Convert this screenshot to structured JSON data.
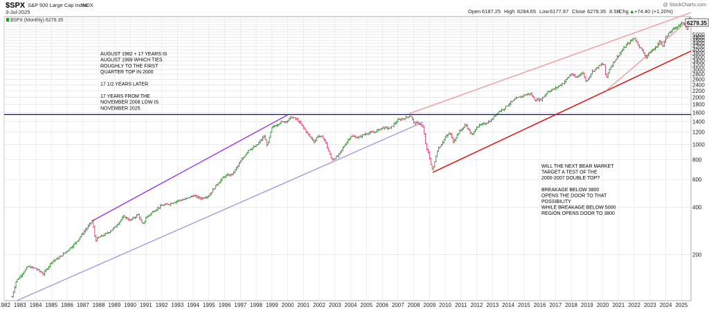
{
  "header": {
    "symbol": "$SPX",
    "name": "S&P 500 Large Cap Index",
    "exchange": "INDX",
    "date": "3-Jul-2025",
    "watermark": "@ StockCharts.com",
    "ohlc": {
      "open_label": "Open",
      "open": "6187.25",
      "high_label": "High",
      "high": "6284.65",
      "low_label": "Low",
      "low": "6177.97",
      "close_label": "Close",
      "close": "6279.35",
      "volume": "8.5B",
      "chg_label": "Chg",
      "chg": "+74.40 (+1.20%)",
      "chg_arrow": "▲"
    },
    "legend": "$SPX (Monthly) 6279.35",
    "last_tag": "6279.35"
  },
  "annotations": {
    "left": [
      "AUGUST 1982 + 17  YEARS IS",
      "AUGUST 1999 WHICH TIES",
      "ROUGHLY TO THE FIRST",
      "QUARTER TOP IN 2000",
      "",
      "17 1/2 YEARS LATER",
      "",
      "17 YEARS FROM THE",
      "NOVEMBER 2008 LOW IS",
      "NOVEMBER 2025"
    ],
    "right": [
      "WILL THE NEXT BEAR MARKET",
      "TARGET A TEST OF THE",
      "2000-2007 DOUBLE TOP?",
      "",
      "BREAKAGE BELOW 3800",
      "OPENS THE DOOR TO THAT",
      "POSSIBILITY",
      "WHILE BREAKAGE BELOW 5000",
      "REGION OPENS DOOR TO 3800"
    ]
  },
  "chart_data": {
    "type": "line",
    "frequency": "monthly",
    "y_scale": "log",
    "ylim": [
      102,
      6500
    ],
    "xlim": [
      1982.0,
      2025.6
    ],
    "x_ticks": [
      "1982",
      "1983",
      "1984",
      "1985",
      "1986",
      "1987",
      "1988",
      "1989",
      "1990",
      "1991",
      "1992",
      "1993",
      "1994",
      "1995",
      "1996",
      "1997",
      "1998",
      "1999",
      "2000",
      "2001",
      "2002",
      "2003",
      "2004",
      "2005",
      "2006",
      "2007",
      "2008",
      "2009",
      "2010",
      "2011",
      "2012",
      "2013",
      "2014",
      "2015",
      "2016",
      "2017",
      "2018",
      "2019",
      "2020",
      "2021",
      "2022",
      "2023",
      "2024",
      "2025"
    ],
    "y_ticks": [
      "200",
      "400",
      "600",
      "800",
      "1000",
      "1200",
      "1400",
      "1600",
      "1800",
      "2000",
      "2200",
      "2400",
      "2600",
      "2800",
      "3000",
      "3200",
      "3400",
      "3600",
      "3800",
      "4000",
      "4200",
      "4400",
      "4600",
      "4800",
      "5000",
      "5200",
      "5400",
      "5600",
      "5800",
      "6000",
      "6200"
    ],
    "y_ticks_visible": [
      "200",
      "400",
      "600",
      "800",
      "1000",
      "1200",
      "1400",
      "1600",
      "1800",
      "2000",
      "2200",
      "2400",
      "2600",
      "2800",
      "3000",
      "3200",
      "3400",
      "3600",
      "3800",
      "4000",
      "4200",
      "4400",
      "4600",
      "4800",
      "5000"
    ],
    "grid": true,
    "series": [
      {
        "values": [
          [
            1982.5,
            108
          ],
          [
            1982.75,
            135
          ],
          [
            1983.0,
            145
          ],
          [
            1983.5,
            168
          ],
          [
            1984.0,
            163
          ],
          [
            1984.5,
            151
          ],
          [
            1985.0,
            180
          ],
          [
            1985.5,
            192
          ],
          [
            1986.0,
            212
          ],
          [
            1986.5,
            236
          ],
          [
            1987.0,
            274
          ],
          [
            1987.6,
            329
          ],
          [
            1987.8,
            245
          ],
          [
            1988.0,
            257
          ],
          [
            1988.5,
            272
          ],
          [
            1989.0,
            297
          ],
          [
            1989.6,
            350
          ],
          [
            1990.0,
            330
          ],
          [
            1990.5,
            360
          ],
          [
            1990.8,
            307
          ],
          [
            1991.0,
            343
          ],
          [
            1991.5,
            380
          ],
          [
            1992.0,
            410
          ],
          [
            1992.5,
            420
          ],
          [
            1993.0,
            440
          ],
          [
            1993.5,
            450
          ],
          [
            1994.0,
            475
          ],
          [
            1994.5,
            455
          ],
          [
            1995.0,
            475
          ],
          [
            1995.5,
            560
          ],
          [
            1996.0,
            630
          ],
          [
            1996.5,
            650
          ],
          [
            1997.0,
            780
          ],
          [
            1997.5,
            925
          ],
          [
            1998.0,
            980
          ],
          [
            1998.5,
            1130
          ],
          [
            1998.7,
            980
          ],
          [
            1999.0,
            1280
          ],
          [
            1999.5,
            1380
          ],
          [
            2000.0,
            1420
          ],
          [
            2000.2,
            1500
          ],
          [
            2000.6,
            1440
          ],
          [
            2000.9,
            1320
          ],
          [
            2001.3,
            1160
          ],
          [
            2001.7,
            1040
          ],
          [
            2001.9,
            1140
          ],
          [
            2002.3,
            1100
          ],
          [
            2002.6,
            900
          ],
          [
            2002.8,
            800
          ],
          [
            2003.2,
            848
          ],
          [
            2003.6,
            990
          ],
          [
            2004.0,
            1130
          ],
          [
            2004.5,
            1110
          ],
          [
            2005.0,
            1180
          ],
          [
            2005.5,
            1200
          ],
          [
            2006.0,
            1280
          ],
          [
            2006.5,
            1270
          ],
          [
            2007.0,
            1430
          ],
          [
            2007.5,
            1480
          ],
          [
            2007.8,
            1540
          ],
          [
            2008.0,
            1380
          ],
          [
            2008.4,
            1360
          ],
          [
            2008.6,
            1280
          ],
          [
            2008.8,
            940
          ],
          [
            2008.9,
            900
          ],
          [
            2009.1,
            740
          ],
          [
            2009.2,
            680
          ],
          [
            2009.5,
            920
          ],
          [
            2010.0,
            1110
          ],
          [
            2010.3,
            1190
          ],
          [
            2010.5,
            1040
          ],
          [
            2010.8,
            1180
          ],
          [
            2011.3,
            1340
          ],
          [
            2011.7,
            1140
          ],
          [
            2012.0,
            1300
          ],
          [
            2012.5,
            1360
          ],
          [
            2012.9,
            1420
          ],
          [
            2013.3,
            1600
          ],
          [
            2013.7,
            1690
          ],
          [
            2014.0,
            1800
          ],
          [
            2014.5,
            1960
          ],
          [
            2015.0,
            2060
          ],
          [
            2015.4,
            2110
          ],
          [
            2015.7,
            1920
          ],
          [
            2016.1,
            1940
          ],
          [
            2016.5,
            2170
          ],
          [
            2017.0,
            2280
          ],
          [
            2017.5,
            2470
          ],
          [
            2018.0,
            2820
          ],
          [
            2018.3,
            2650
          ],
          [
            2018.7,
            2900
          ],
          [
            2018.95,
            2500
          ],
          [
            2019.3,
            2900
          ],
          [
            2019.9,
            3230
          ],
          [
            2020.1,
            3220
          ],
          [
            2020.2,
            2580
          ],
          [
            2020.4,
            3000
          ],
          [
            2020.7,
            3360
          ],
          [
            2021.0,
            3710
          ],
          [
            2021.5,
            4300
          ],
          [
            2021.99,
            4760
          ],
          [
            2022.4,
            4100
          ],
          [
            2022.75,
            3600
          ],
          [
            2022.95,
            3840
          ],
          [
            2023.4,
            4180
          ],
          [
            2023.6,
            4580
          ],
          [
            2023.8,
            4190
          ],
          [
            2023.99,
            4770
          ],
          [
            2024.3,
            5240
          ],
          [
            2024.6,
            5520
          ],
          [
            2024.99,
            5880
          ],
          [
            2025.1,
            5960
          ],
          [
            2025.3,
            5600
          ],
          [
            2025.35,
            5300
          ],
          [
            2025.4,
            5900
          ],
          [
            2025.5,
            6280
          ]
        ]
      }
    ],
    "trendlines": [
      {
        "color": "#0000cc",
        "points": [
          [
            1982.0,
            1552
          ],
          [
            2025.6,
            1552
          ]
        ]
      },
      {
        "color": "#9a30ff",
        "points": [
          [
            1987.6,
            328
          ],
          [
            2000.0,
            1545
          ]
        ]
      },
      {
        "color": "#9e9ae0",
        "points": [
          [
            1982.8,
            102
          ],
          [
            2008.6,
            1390
          ]
        ]
      },
      {
        "color": "#f09a9a",
        "points": [
          [
            2007.7,
            1570
          ],
          [
            2025.6,
            6900
          ]
        ]
      },
      {
        "color": "#e90000",
        "points": [
          [
            2009.2,
            666
          ],
          [
            2025.6,
            3930
          ]
        ]
      },
      {
        "color": "#f09a9a",
        "points": [
          [
            2020.2,
            2200
          ],
          [
            2025.6,
            6350
          ]
        ]
      }
    ]
  }
}
